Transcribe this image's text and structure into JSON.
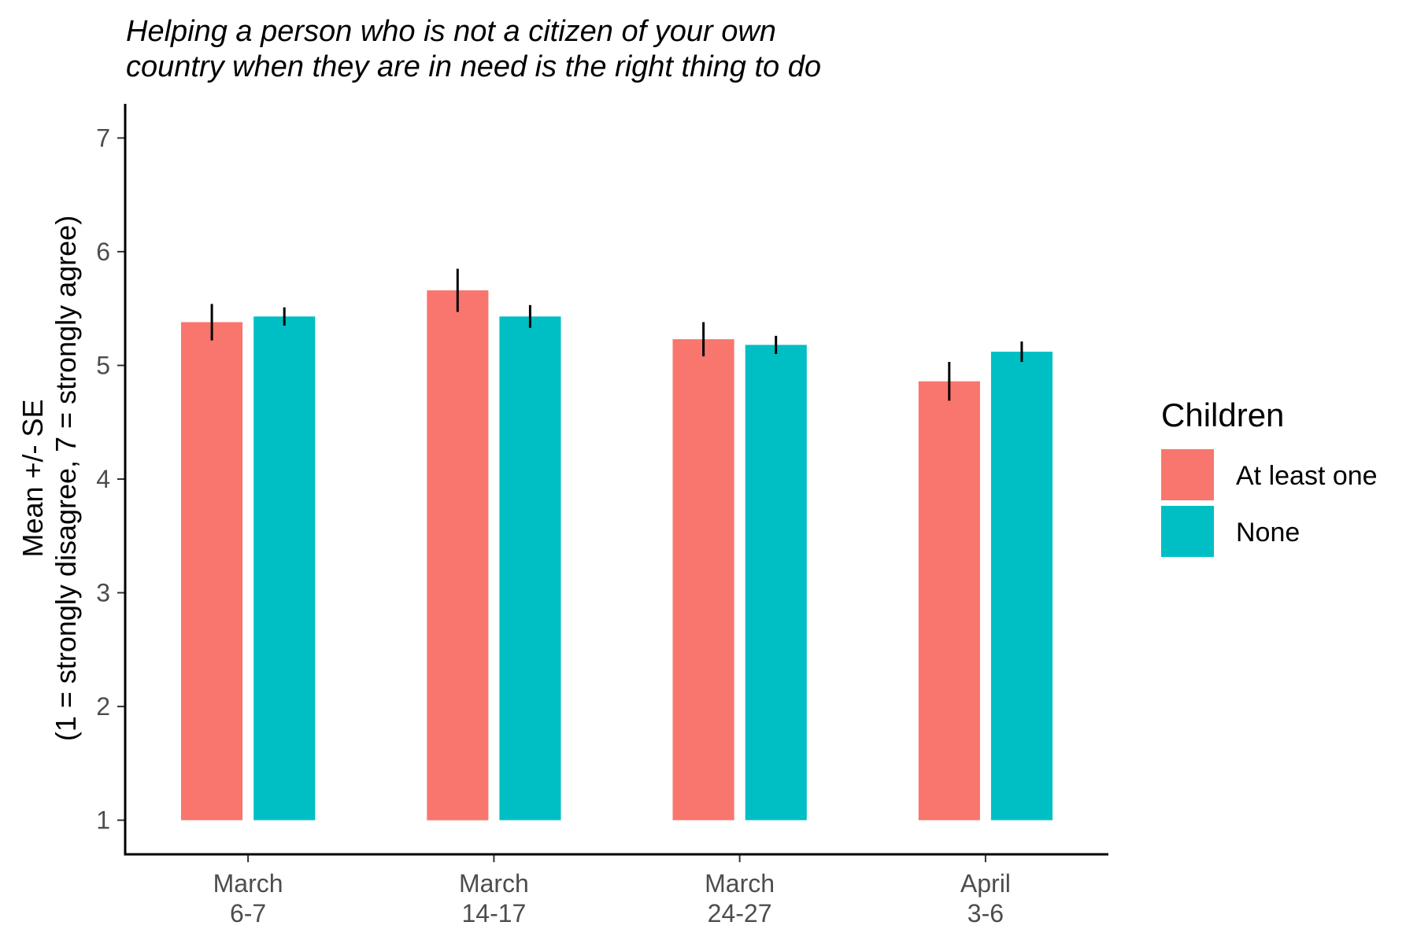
{
  "chart_data": {
    "type": "bar",
    "title_lines": [
      "Helping a person who is not a citizen of your own",
      "country when they are in need is the right thing to do"
    ],
    "xlabel": "",
    "ylabel_lines": [
      "Mean +/- SE",
      "(1 = strongly disagree, 7 = strongly agree)"
    ],
    "categories": [
      [
        "March",
        "6-7"
      ],
      [
        "March",
        "14-17"
      ],
      [
        "March",
        "24-27"
      ],
      [
        "April",
        "3-6"
      ]
    ],
    "ylim": [
      0.7,
      7.3
    ],
    "bar_base": 1,
    "yticks": [
      "1",
      "2",
      "3",
      "4",
      "5",
      "6",
      "7"
    ],
    "grid": false,
    "legend": {
      "title": "Children",
      "position": "right"
    },
    "series": [
      {
        "name": "At least one",
        "color": "#F8766D",
        "values": [
          5.38,
          5.66,
          5.23,
          4.86
        ],
        "se": [
          0.16,
          0.19,
          0.15,
          0.17
        ]
      },
      {
        "name": "None",
        "color": "#00BFC4",
        "values": [
          5.43,
          5.43,
          5.18,
          5.12
        ],
        "se": [
          0.08,
          0.1,
          0.08,
          0.09
        ]
      }
    ]
  }
}
